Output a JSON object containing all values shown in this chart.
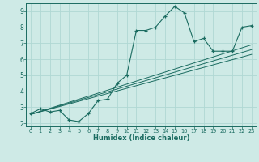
{
  "title": "",
  "xlabel": "Humidex (Indice chaleur)",
  "ylabel": "",
  "bg_color": "#ceeae6",
  "line_color": "#1a6b60",
  "grid_color": "#b0d8d4",
  "xlim": [
    -0.5,
    23.5
  ],
  "ylim": [
    1.8,
    9.5
  ],
  "xticks": [
    0,
    1,
    2,
    3,
    4,
    5,
    6,
    7,
    8,
    9,
    10,
    11,
    12,
    13,
    14,
    15,
    16,
    17,
    18,
    19,
    20,
    21,
    22,
    23
  ],
  "yticks": [
    2,
    3,
    4,
    5,
    6,
    7,
    8,
    9
  ],
  "series": [
    {
      "x": [
        0,
        1,
        2,
        3,
        4,
        5,
        5,
        6,
        7,
        8,
        9,
        10,
        11,
        12,
        13,
        14,
        15,
        16,
        17,
        18,
        19,
        20,
        21,
        22,
        23
      ],
      "y": [
        2.6,
        2.9,
        2.7,
        2.8,
        2.2,
        2.1,
        2.1,
        2.6,
        3.4,
        3.5,
        4.5,
        5.0,
        7.8,
        7.8,
        8.0,
        8.7,
        9.3,
        8.9,
        7.1,
        7.3,
        6.5,
        6.5,
        6.5,
        8.0,
        8.1
      ]
    },
    {
      "x": [
        0,
        23
      ],
      "y": [
        2.55,
        6.3
      ]
    },
    {
      "x": [
        0,
        23
      ],
      "y": [
        2.55,
        6.6
      ]
    },
    {
      "x": [
        0,
        23
      ],
      "y": [
        2.55,
        6.9
      ]
    }
  ]
}
